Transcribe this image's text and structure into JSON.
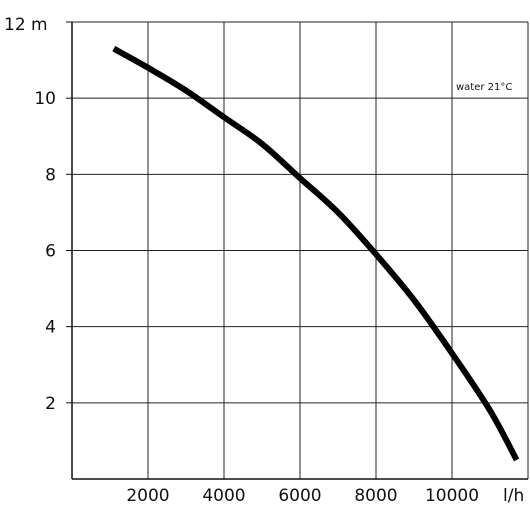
{
  "chart_data": {
    "type": "line",
    "title": "",
    "xlabel": "l/h",
    "ylabel": "m",
    "xlim": [
      0,
      12000
    ],
    "ylim": [
      0,
      12
    ],
    "x_ticks": [
      2000,
      4000,
      6000,
      8000,
      10000
    ],
    "x_tick_labels": [
      "2000",
      "4000",
      "6000",
      "8000",
      "10000"
    ],
    "y_ticks": [
      2,
      4,
      6,
      8,
      10,
      12
    ],
    "y_tick_labels": [
      "2",
      "4",
      "6",
      "8",
      "10",
      "12"
    ],
    "y_top_label": "12 m",
    "x_unit_label": "l/h",
    "grid": true,
    "annotation": "water 21°C",
    "series": [
      {
        "x": [
          1100,
          2000,
          3000,
          4000,
          5000,
          6000,
          7000,
          8000,
          9000,
          10000,
          11000,
          11700
        ],
        "y": [
          11.3,
          10.8,
          10.2,
          9.5,
          8.8,
          7.9,
          7.0,
          5.9,
          4.7,
          3.3,
          1.8,
          0.5
        ]
      }
    ]
  }
}
